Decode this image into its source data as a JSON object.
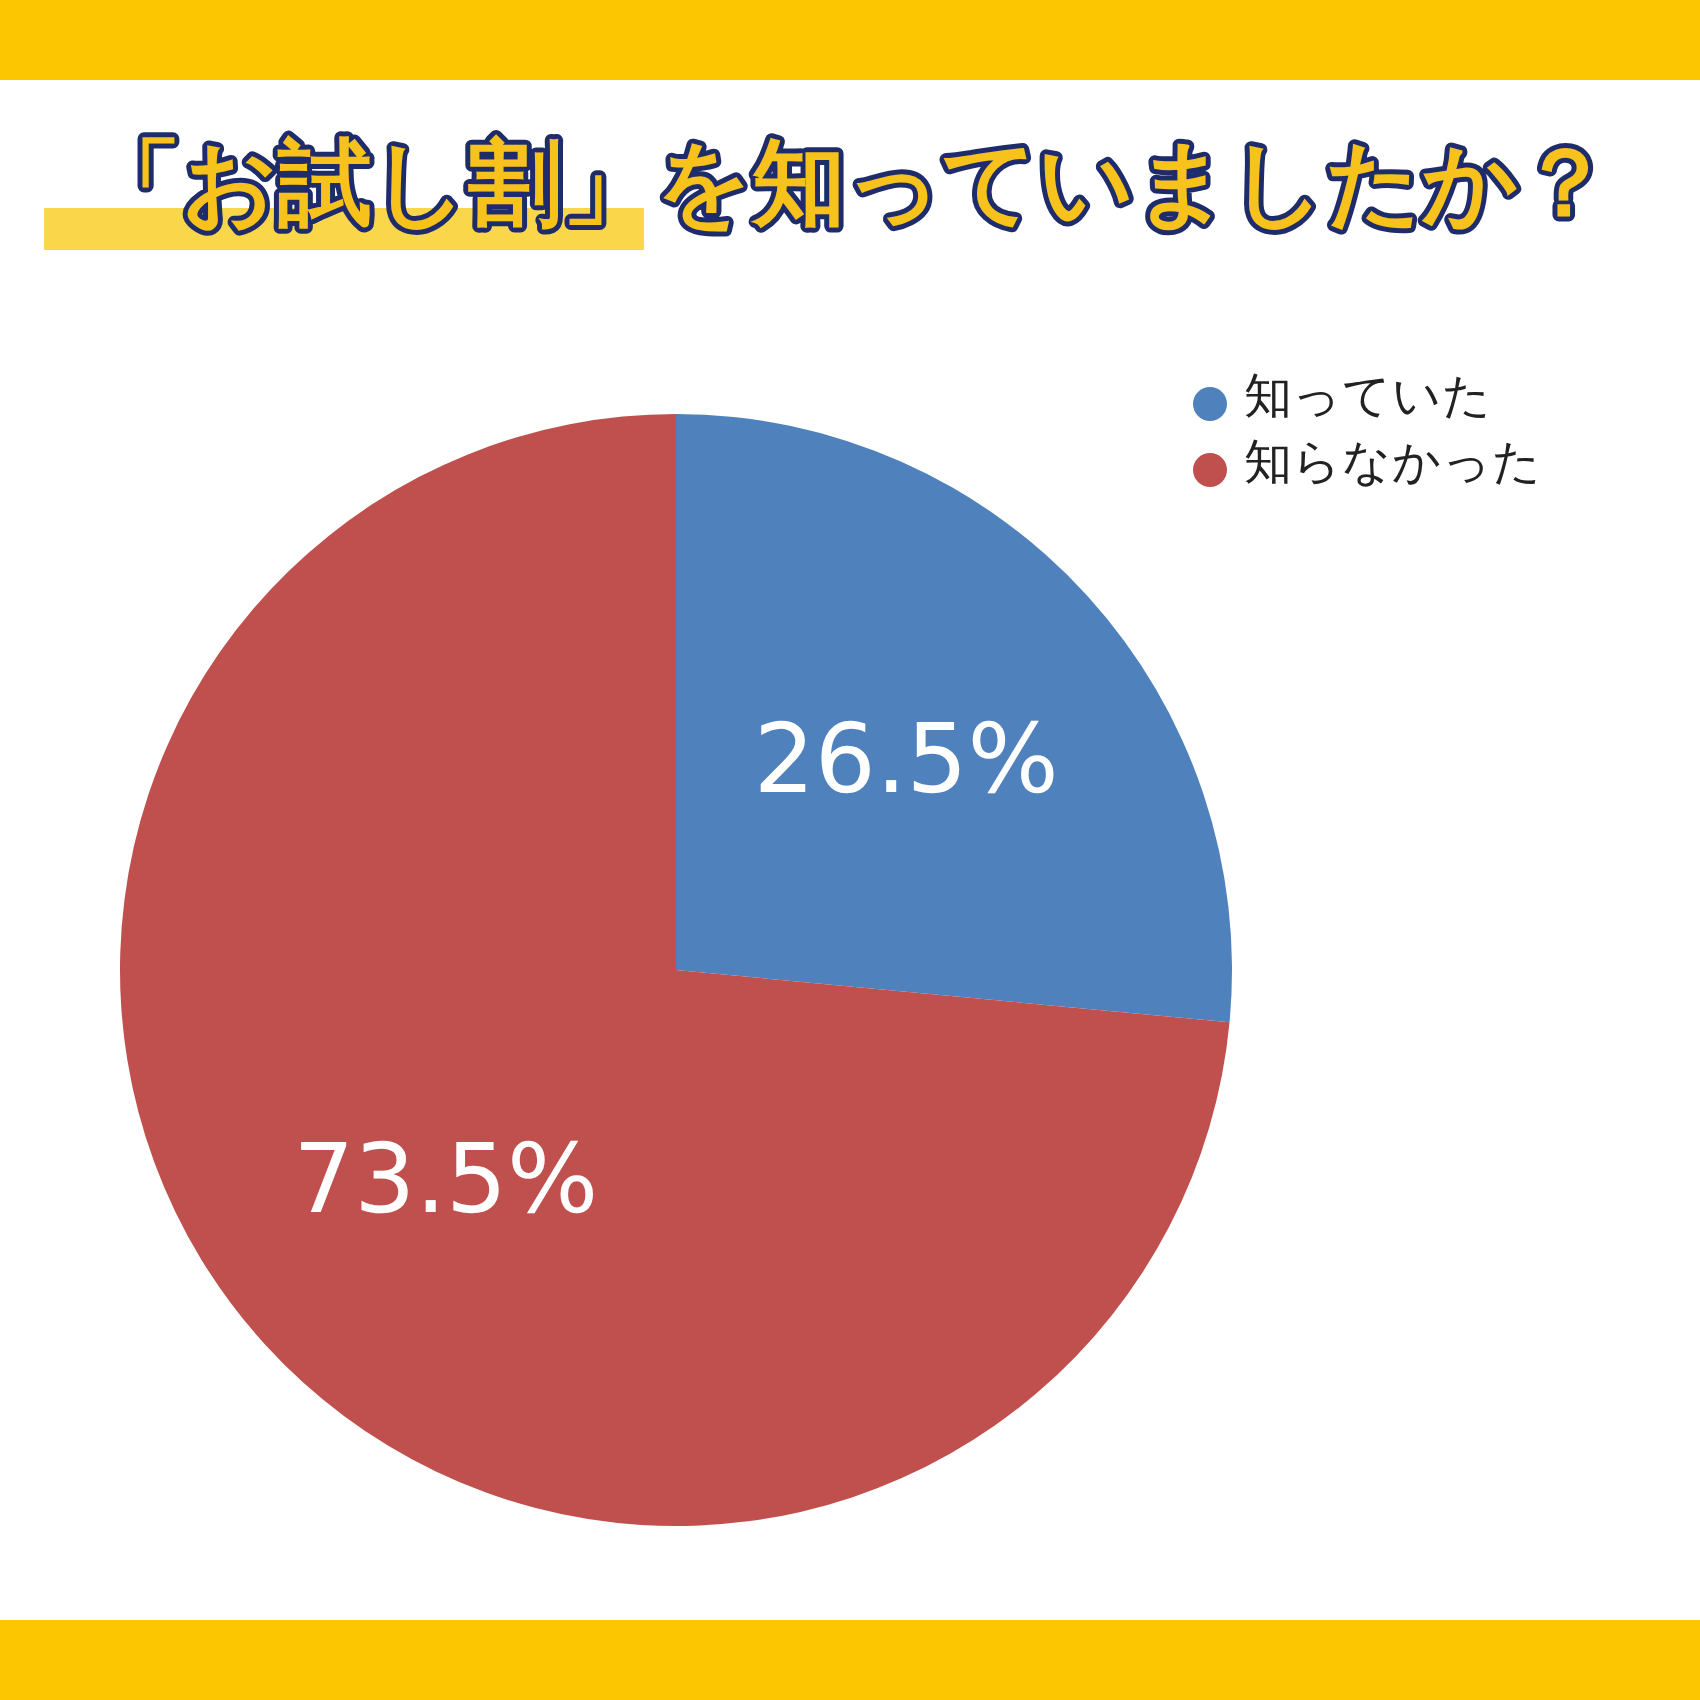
{
  "chart_data": {
    "type": "pie",
    "title": "「お試し割」を知っていましたか？",
    "categories": [
      "知っていた",
      "知らなかった"
    ],
    "values": [
      26.5,
      73.5
    ],
    "colors": [
      "#4f81bd",
      "#c0504d"
    ],
    "value_labels": [
      "26.5%",
      "73.5%"
    ],
    "legend": "top right"
  }
}
